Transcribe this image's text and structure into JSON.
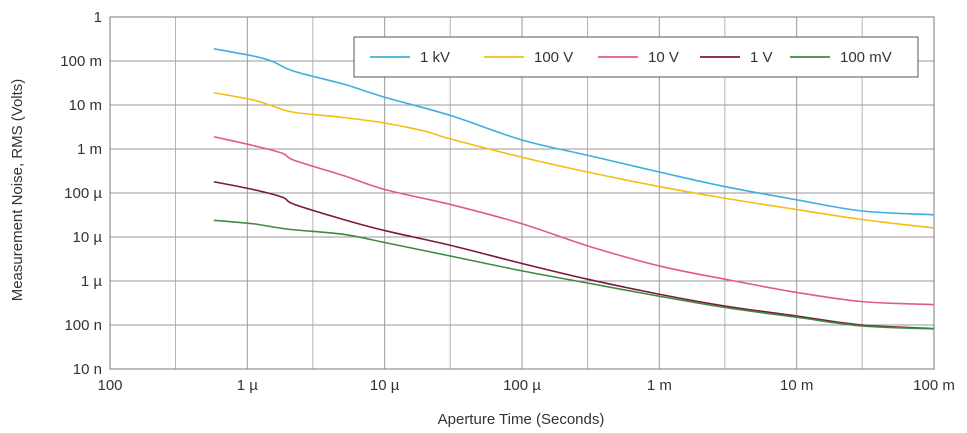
{
  "chart_data": {
    "type": "line",
    "title": "",
    "xlabel": "Aperture Time (Seconds)",
    "ylabel": "Measurement Noise, RMS (Volts)",
    "x_scale": "log",
    "y_scale": "log",
    "xlim": [
      1e-07,
      0.1
    ],
    "ylim": [
      1e-08,
      1
    ],
    "grid": true,
    "legend_position": "top-right",
    "x_ticks": [
      {
        "value": 1e-07,
        "label": "100"
      },
      {
        "value": 1e-06,
        "label": "1 µ"
      },
      {
        "value": 1e-05,
        "label": "10 µ"
      },
      {
        "value": 0.0001,
        "label": "100 µ"
      },
      {
        "value": 0.001,
        "label": "1 m"
      },
      {
        "value": 0.01,
        "label": "10 m"
      },
      {
        "value": 0.1,
        "label": "100 m"
      }
    ],
    "y_ticks": [
      {
        "value": 1,
        "label": "1"
      },
      {
        "value": 0.1,
        "label": "100 m"
      },
      {
        "value": 0.01,
        "label": "10 m"
      },
      {
        "value": 0.001,
        "label": "1 m"
      },
      {
        "value": 0.0001,
        "label": "100 µ"
      },
      {
        "value": 1e-05,
        "label": "10 µ"
      },
      {
        "value": 1e-06,
        "label": "1 µ"
      },
      {
        "value": 1e-07,
        "label": "100 n"
      },
      {
        "value": 1e-08,
        "label": "10 n"
      }
    ],
    "series": [
      {
        "name": "1 kV",
        "color": "#3fb0d8",
        "points": [
          [
            5.7e-07,
            0.19
          ],
          [
            1.1e-06,
            0.13
          ],
          [
            1.5e-06,
            0.1
          ],
          [
            2.2e-06,
            0.058
          ],
          [
            5e-06,
            0.03
          ],
          [
            1e-05,
            0.015
          ],
          [
            3e-05,
            0.0058
          ],
          [
            0.0001,
            0.0016
          ],
          [
            0.0003,
            0.00072
          ],
          [
            0.001,
            0.0003
          ],
          [
            0.003,
            0.00014
          ],
          [
            0.01,
            7e-05
          ],
          [
            0.03,
            3.9e-05
          ],
          [
            0.1,
            3.2e-05
          ]
        ]
      },
      {
        "name": "100 V",
        "color": "#f2bf10",
        "points": [
          [
            5.7e-07,
            0.019
          ],
          [
            1.1e-06,
            0.013
          ],
          [
            1.6e-06,
            0.009
          ],
          [
            2.2e-06,
            0.0068
          ],
          [
            5e-06,
            0.0052
          ],
          [
            1e-05,
            0.0039
          ],
          [
            2e-05,
            0.0025
          ],
          [
            3e-05,
            0.0017
          ],
          [
            0.0001,
            0.00065
          ],
          [
            0.0003,
            0.0003
          ],
          [
            0.001,
            0.00014
          ],
          [
            0.003,
            7.6e-05
          ],
          [
            0.01,
            4.2e-05
          ],
          [
            0.03,
            2.5e-05
          ],
          [
            0.1,
            1.6e-05
          ]
        ]
      },
      {
        "name": "10 V",
        "color": "#e05a8c",
        "points": [
          [
            5.7e-07,
            0.0019
          ],
          [
            1.1e-06,
            0.0012
          ],
          [
            1.8e-06,
            0.0008
          ],
          [
            2.2e-06,
            0.00055
          ],
          [
            5e-06,
            0.00025
          ],
          [
            1e-05,
            0.00012
          ],
          [
            3e-05,
            5.5e-05
          ],
          [
            0.0001,
            2e-05
          ],
          [
            0.0003,
            6.3e-06
          ],
          [
            0.001,
            2.2e-06
          ],
          [
            0.003,
            1.1e-06
          ],
          [
            0.01,
            5.5e-07
          ],
          [
            0.03,
            3.4e-07
          ],
          [
            0.1,
            2.9e-07
          ]
        ]
      },
      {
        "name": "1 V",
        "color": "#7b1840",
        "points": [
          [
            5.7e-07,
            0.00018
          ],
          [
            1.1e-06,
            0.00012
          ],
          [
            1.8e-06,
            8e-05
          ],
          [
            2.2e-06,
            5.5e-05
          ],
          [
            5e-06,
            2.5e-05
          ],
          [
            1e-05,
            1.4e-05
          ],
          [
            3e-05,
            6.5e-06
          ],
          [
            0.0001,
            2.5e-06
          ],
          [
            0.0003,
            1.1e-06
          ],
          [
            0.001,
            5e-07
          ],
          [
            0.003,
            2.7e-07
          ],
          [
            0.01,
            1.6e-07
          ],
          [
            0.03,
            1e-07
          ],
          [
            0.1,
            8.3e-08
          ]
        ]
      },
      {
        "name": "100 mV",
        "color": "#3e8a3e",
        "points": [
          [
            5.7e-07,
            2.4e-05
          ],
          [
            1.1e-06,
            2e-05
          ],
          [
            2e-06,
            1.5e-05
          ],
          [
            5e-06,
            1.15e-05
          ],
          [
            1e-05,
            7.5e-06
          ],
          [
            3e-05,
            3.7e-06
          ],
          [
            0.0001,
            1.7e-06
          ],
          [
            0.0003,
            9e-07
          ],
          [
            0.001,
            4.5e-07
          ],
          [
            0.003,
            2.5e-07
          ],
          [
            0.01,
            1.5e-07
          ],
          [
            0.03,
            9.5e-08
          ],
          [
            0.1,
            8.2e-08
          ]
        ]
      }
    ]
  }
}
